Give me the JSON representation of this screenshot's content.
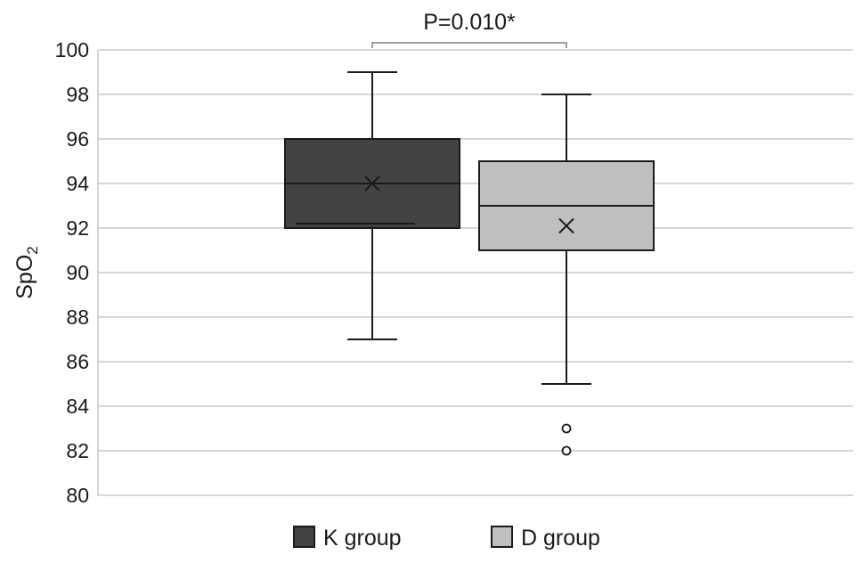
{
  "chart_data": {
    "type": "box",
    "ylabel_main": "SpO",
    "ylabel_sub": "2",
    "ylim": [
      80,
      100
    ],
    "yticks": [
      80,
      82,
      84,
      86,
      88,
      90,
      92,
      94,
      96,
      98,
      100
    ],
    "grid": true,
    "legend_position": "bottom",
    "annotation": "P=0.010*",
    "series": [
      {
        "name": "K group",
        "color": "#434343",
        "whisker_low": 87,
        "q1": 92,
        "median": 94,
        "q3": 96,
        "whisker_high": 99,
        "mean": 94,
        "inner_line": 92.2,
        "outliers": []
      },
      {
        "name": "D group",
        "color": "#bfbfbf",
        "whisker_low": 85,
        "q1": 91,
        "median": 93,
        "q3": 95,
        "whisker_high": 98,
        "mean": 92.1,
        "outliers": [
          83,
          82
        ]
      }
    ]
  }
}
